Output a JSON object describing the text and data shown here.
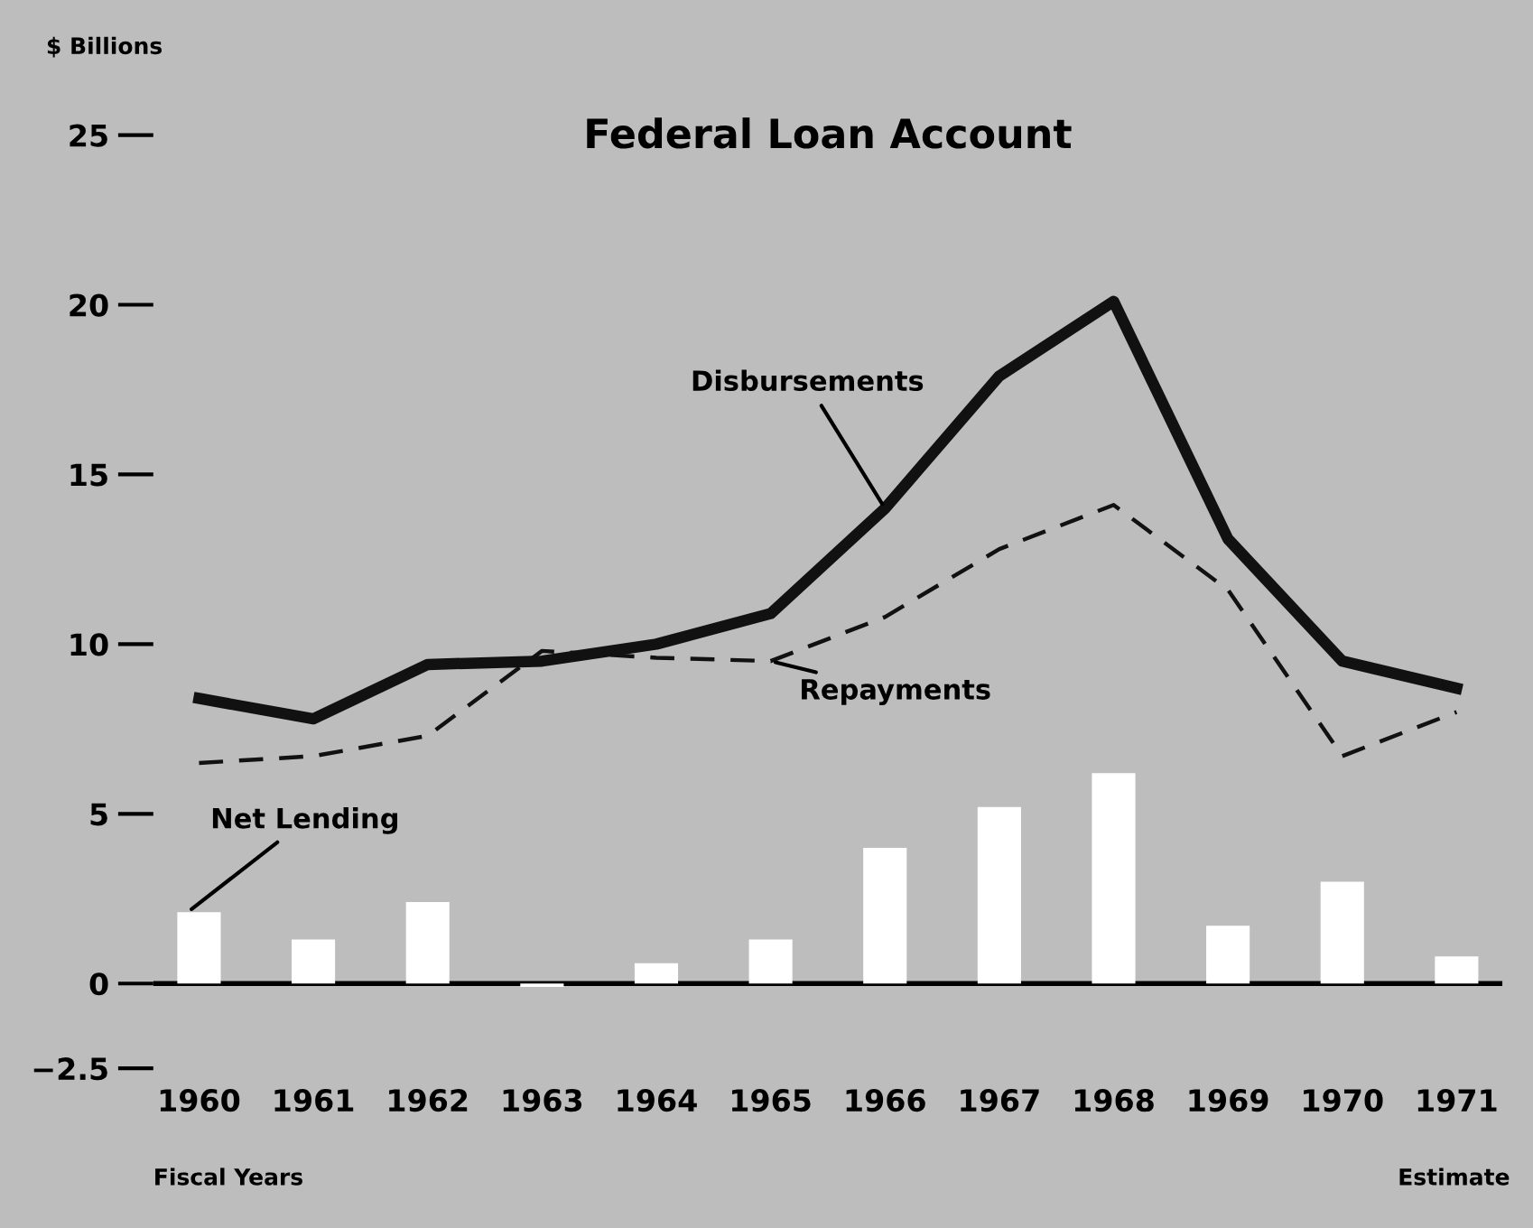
{
  "chart_data": {
    "type": "line",
    "title": "Federal Loan Account",
    "ylabel": "$ Billions",
    "categories": [
      "1960",
      "1961",
      "1962",
      "1963",
      "1964",
      "1965",
      "1966",
      "1967",
      "1968",
      "1969",
      "1970",
      "1971"
    ],
    "series": [
      {
        "name": "Disbursements",
        "color": "#111111",
        "line_style": "solid",
        "values": [
          8.4,
          7.8,
          9.4,
          9.5,
          10.0,
          10.9,
          14.0,
          17.9,
          20.1,
          13.1,
          9.5,
          8.7
        ]
      },
      {
        "name": "Repayments",
        "color": "#111111",
        "line_style": "dashed",
        "values": [
          6.5,
          6.7,
          7.3,
          9.8,
          9.6,
          9.5,
          10.8,
          12.8,
          14.1,
          11.6,
          6.7,
          8.0
        ]
      },
      {
        "name": "Net Lending",
        "type": "bar",
        "color": "#ffffff",
        "values": [
          2.1,
          1.3,
          2.4,
          -0.1,
          0.6,
          1.3,
          4.0,
          5.2,
          6.2,
          1.7,
          3.0,
          0.8
        ]
      }
    ],
    "ylim": [
      -2.5,
      25
    ],
    "yticks": [
      {
        "value": -2.5,
        "label": "−2.5"
      },
      0,
      5,
      10,
      15,
      20,
      25
    ],
    "ref_lines": [
      {
        "axis": "y",
        "value": 0,
        "color": "#000000"
      }
    ],
    "annotations": [
      "Fiscal Years",
      "Estimate"
    ],
    "grid": false,
    "legend": false,
    "marker": "none"
  }
}
